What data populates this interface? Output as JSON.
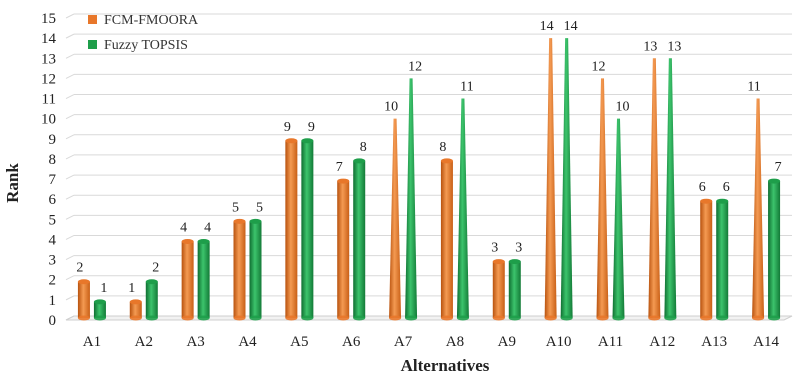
{
  "chart_data": {
    "type": "bar",
    "xlabel": "Alternatives",
    "ylabel": "Rank",
    "ylim": [
      0,
      15
    ],
    "y_ticks": [
      0,
      1,
      2,
      3,
      4,
      5,
      6,
      7,
      8,
      9,
      10,
      11,
      12,
      13,
      14,
      15
    ],
    "grid": true,
    "legend_position": "top-left",
    "categories": [
      "A1",
      "A2",
      "A3",
      "A4",
      "A5",
      "A6",
      "A7",
      "A8",
      "A9",
      "A10",
      "A11",
      "A12",
      "A13",
      "A14"
    ],
    "series": [
      {
        "name": "FCM-FMOORA",
        "color": "#E8772A",
        "values": [
          2,
          1,
          4,
          5,
          9,
          7,
          10,
          8,
          3,
          14,
          12,
          13,
          6,
          11
        ]
      },
      {
        "name": "Fuzzy TOPSIS",
        "color": "#1E9E4A",
        "values": [
          1,
          2,
          4,
          5,
          9,
          8,
          12,
          11,
          3,
          14,
          10,
          13,
          6,
          7
        ]
      }
    ]
  }
}
